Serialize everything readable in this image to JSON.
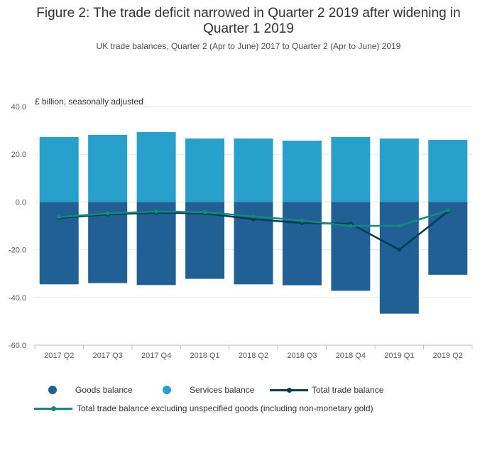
{
  "title": "Figure 2: The trade deficit narrowed in Quarter 2 2019 after widening in Quarter 1 2019",
  "subtitle": "UK trade balances, Quarter 2 (Apr to June) 2017 to Quarter 2 (Apr to June) 2019",
  "unit_label": "£ billion, seasonally adjusted",
  "colors": {
    "goods": "#206095",
    "services": "#27a0cc",
    "total": "#003c57",
    "total_excl": "#118c7b",
    "grid": "#e5e5e5",
    "axis": "#bdbdbd"
  },
  "legend": {
    "goods": "Goods balance",
    "services": "Services balance",
    "total": "Total trade balance",
    "total_excl": "Total trade balance excluding unspecified goods (including non-monetary gold)"
  },
  "chart_data": {
    "type": "bar",
    "stacked": true,
    "categories": [
      "2017 Q2",
      "2017 Q3",
      "2017 Q4",
      "2018 Q1",
      "2018 Q2",
      "2018 Q3",
      "2018 Q4",
      "2019 Q1",
      "2019 Q2"
    ],
    "ylim": [
      -60,
      40
    ],
    "yticks": [
      "40.0",
      "20.0",
      "0.0",
      "-20.0",
      "-40.0",
      "-60.0"
    ],
    "ytick_values": [
      40,
      20,
      0,
      -20,
      -40,
      -60
    ],
    "grid": true,
    "legend_position": "bottom",
    "series": [
      {
        "name": "Goods balance",
        "kind": "bar",
        "values": [
          -34.5,
          -34.0,
          -34.8,
          -32.2,
          -34.5,
          -34.9,
          -37.2,
          -46.8,
          -30.5
        ]
      },
      {
        "name": "Services balance",
        "kind": "bar",
        "values": [
          27.2,
          28.1,
          29.3,
          26.6,
          26.6,
          25.7,
          27.2,
          26.6,
          26.0
        ]
      },
      {
        "name": "Total trade balance",
        "kind": "line",
        "values": [
          -6.7,
          -5.2,
          -4.5,
          -4.8,
          -7.2,
          -8.8,
          -9.1,
          -20.0,
          -4.0
        ]
      },
      {
        "name": "Total trade balance excluding unspecified goods (including non-monetary gold)",
        "kind": "line",
        "values": [
          -6.3,
          -4.8,
          -4.0,
          -4.3,
          -6.0,
          -7.8,
          -10.0,
          -10.0,
          -3.5
        ]
      }
    ]
  }
}
